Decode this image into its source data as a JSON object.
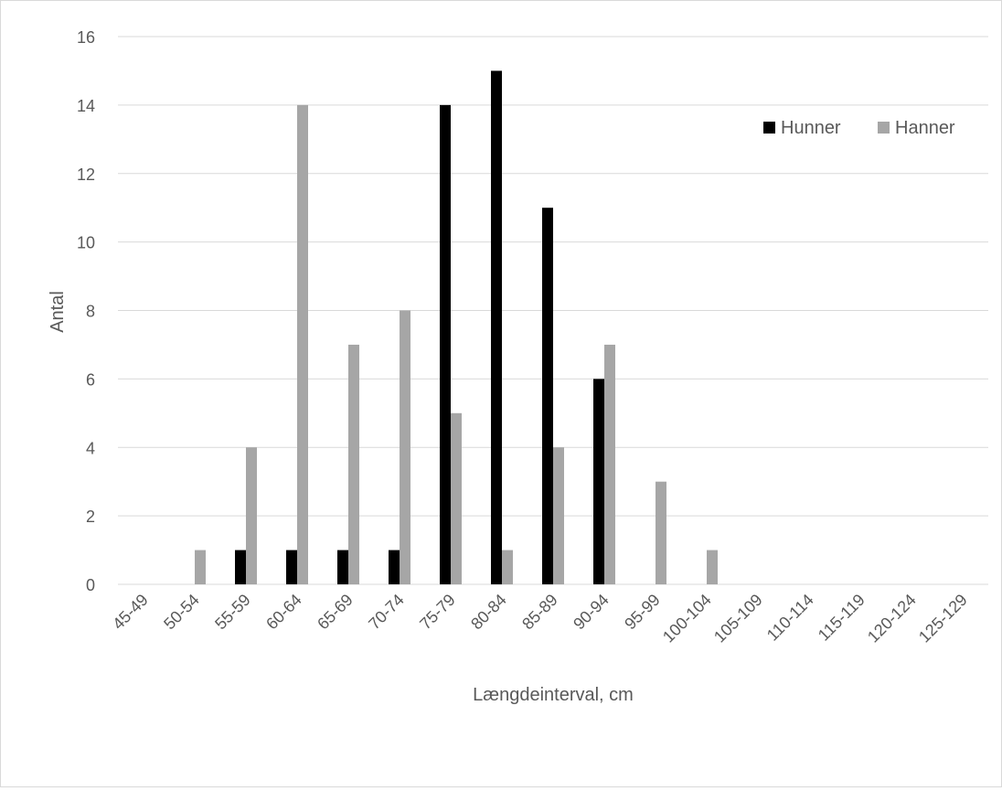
{
  "chart_data": {
    "type": "bar",
    "title": "",
    "xlabel": "Længdeinterval, cm",
    "ylabel": "Antal",
    "ylim": [
      0,
      16
    ],
    "yticks": [
      0,
      2,
      4,
      6,
      8,
      10,
      12,
      14,
      16
    ],
    "grid": "horizontal",
    "legend_position": "top-right",
    "categories": [
      "45-49",
      "50-54",
      "55-59",
      "60-64",
      "65-69",
      "70-74",
      "75-79",
      "80-84",
      "85-89",
      "90-94",
      "95-99",
      "100-104",
      "105-109",
      "110-114",
      "115-119",
      "120-124",
      "125-129"
    ],
    "series": [
      {
        "name": "Hunner",
        "color": "#000000",
        "values": [
          0,
          0,
          1,
          1,
          1,
          1,
          14,
          15,
          11,
          6,
          0,
          0,
          0,
          0,
          0,
          0,
          0
        ]
      },
      {
        "name": "Hanner",
        "color": "#a6a6a6",
        "values": [
          0,
          1,
          4,
          14,
          7,
          8,
          5,
          1,
          4,
          7,
          3,
          1,
          0,
          0,
          0,
          0,
          0
        ]
      }
    ]
  }
}
